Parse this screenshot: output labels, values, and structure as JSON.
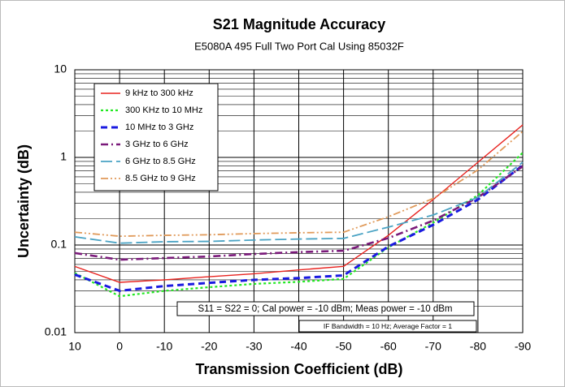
{
  "chart_data": {
    "type": "line",
    "title": "S21 Magnitude Accuracy",
    "subtitle": "E5080A 495 Full Two Port Cal Using 85032F",
    "xlabel": "Transmission Coefficient (dB)",
    "ylabel": "Uncertainty (dB)",
    "x": [
      10,
      0,
      -10,
      -20,
      -30,
      -40,
      -50,
      -60,
      -70,
      -80,
      -90
    ],
    "xlim": [
      10,
      -90
    ],
    "xticks": [
      10,
      0,
      -10,
      -20,
      -30,
      -40,
      -50,
      -60,
      -70,
      -80,
      -90
    ],
    "ylim": [
      0.01,
      10
    ],
    "yticks": [
      0.01,
      0.1,
      1,
      10
    ],
    "log_y": true,
    "grid": true,
    "minor_grid": true,
    "legend": "upper left",
    "series": [
      {
        "name": "9 kHz to 300 kHz",
        "color": "#e8231f",
        "dash": "solid",
        "values": [
          0.057,
          0.0375,
          0.04,
          0.0435,
          0.047,
          0.052,
          0.057,
          0.129,
          0.33,
          0.88,
          2.35
        ]
      },
      {
        "name": "300 KHz to 10 MHz",
        "color": "#22e822",
        "dash": "dot",
        "values": [
          0.048,
          0.026,
          0.03,
          0.033,
          0.036,
          0.038,
          0.041,
          0.094,
          0.18,
          0.37,
          1.13
        ]
      },
      {
        "name": "10 MHz to 3 GHz",
        "color": "#1a1ae0",
        "dash": "dash",
        "values": [
          0.046,
          0.03,
          0.034,
          0.037,
          0.04,
          0.042,
          0.045,
          0.096,
          0.17,
          0.33,
          0.81
        ]
      },
      {
        "name": "3 GHz to 6 GHz",
        "color": "#7a1a7a",
        "dash": "dashdot",
        "values": [
          0.081,
          0.068,
          0.071,
          0.074,
          0.079,
          0.083,
          0.086,
          0.12,
          0.19,
          0.35,
          0.79
        ]
      },
      {
        "name": "6 GHz to 8.5 GHz",
        "color": "#4aa3c4",
        "dash": "longdash",
        "values": [
          0.124,
          0.105,
          0.109,
          0.11,
          0.114,
          0.117,
          0.119,
          0.16,
          0.22,
          0.35,
          0.88
        ]
      },
      {
        "name": "8.5 GHz to 9 GHz",
        "color": "#e09a5a",
        "dash": "dashdotdot",
        "values": [
          0.14,
          0.126,
          0.129,
          0.131,
          0.135,
          0.138,
          0.14,
          0.21,
          0.34,
          0.72,
          1.98
        ]
      }
    ],
    "annotations": [
      "S11 = S22 = 0; Cal power = -10 dBm; Meas power = -10 dBm",
      "IF Bandwidth = 10 Hz; Average Factor = 1"
    ]
  }
}
